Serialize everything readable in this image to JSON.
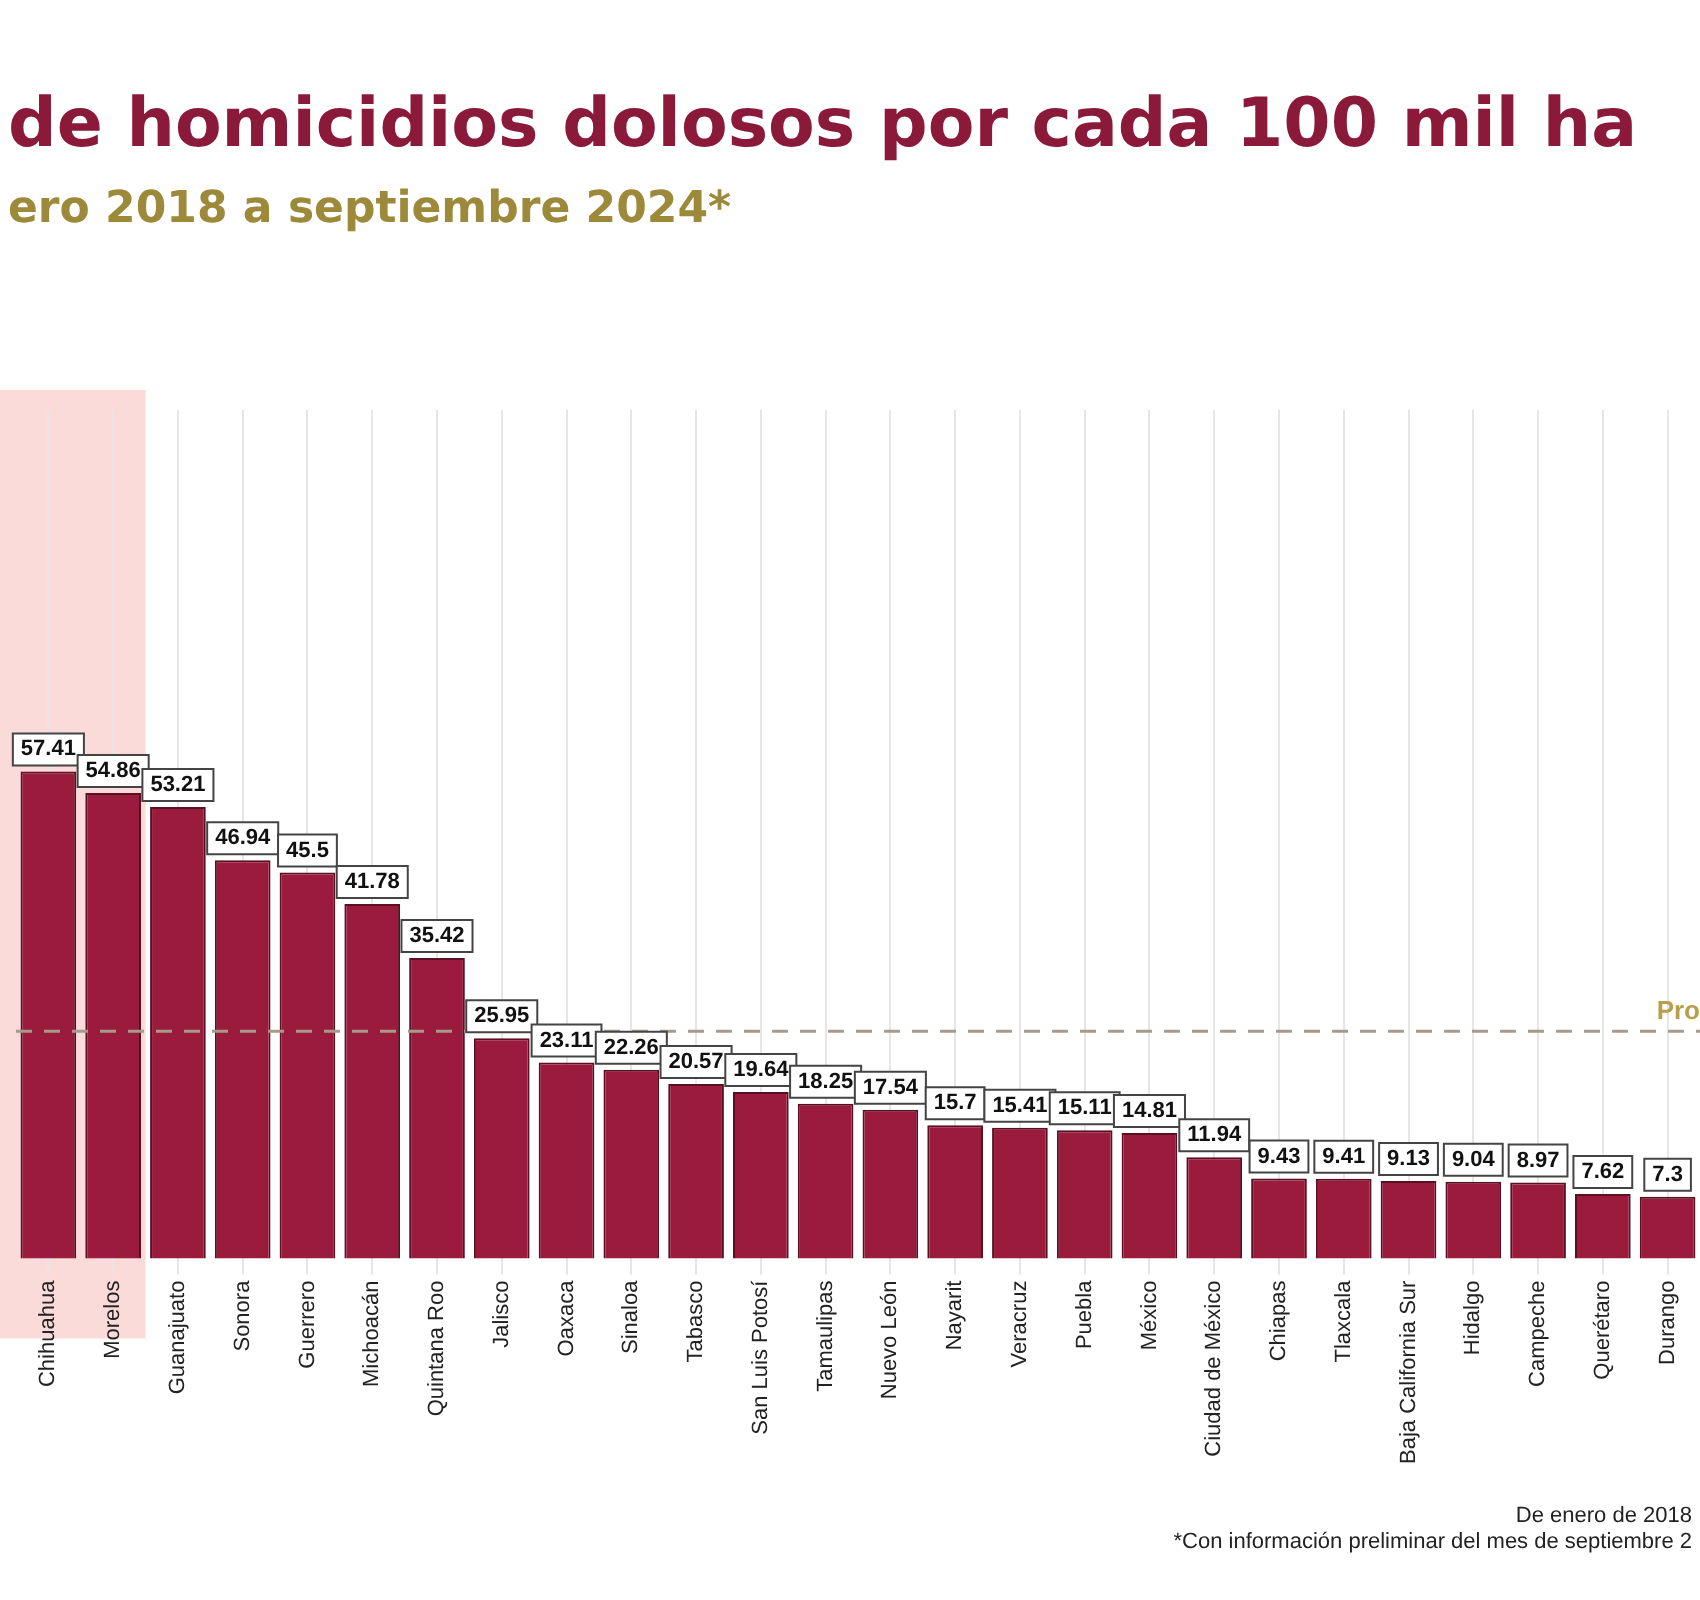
{
  "chart_data": {
    "type": "bar",
    "title": "de homicidios dolosos por cada 100 mil ha",
    "subtitle": "ero 2018 a septiembre 2024*",
    "categories": [
      "Chihuahua",
      "Morelos",
      "Guanajuato",
      "Sonora",
      "Guerrero",
      "Michoacán",
      "Quintana Roo",
      "Jalisco",
      "Oaxaca",
      "Sinaloa",
      "Tabasco",
      "San Luis Potosí",
      "Tamaulipas",
      "Nuevo León",
      "Nayarit",
      "Veracruz",
      "Puebla",
      "México",
      "Ciudad de México",
      "Chiapas",
      "Tlaxcala",
      "Baja California Sur",
      "Hidalgo",
      "Campeche",
      "Querétaro",
      "Durango"
    ],
    "values": [
      57.41,
      54.86,
      53.21,
      46.94,
      45.5,
      41.78,
      35.42,
      25.95,
      23.11,
      22.26,
      20.57,
      19.64,
      18.25,
      17.54,
      15.7,
      15.41,
      15.11,
      14.81,
      11.94,
      9.43,
      9.41,
      9.13,
      9.04,
      8.97,
      7.62,
      7.3
    ],
    "color": "#9b1b3c",
    "ylim": [
      0,
      100
    ],
    "data_labels": true,
    "grid": "x",
    "ref_lines": [
      {
        "axis": "y",
        "value": 26.8,
        "label": "Pro",
        "color": "#a89a8a",
        "line_style": "dashed"
      }
    ],
    "bands": [
      {
        "axis": "x",
        "from": "Chihuahua",
        "to": "Morelos",
        "color": "#fbdada"
      }
    ],
    "annotations": [
      "De enero de 2018",
      "*Con información preliminar del mes de septiembre 2"
    ]
  }
}
